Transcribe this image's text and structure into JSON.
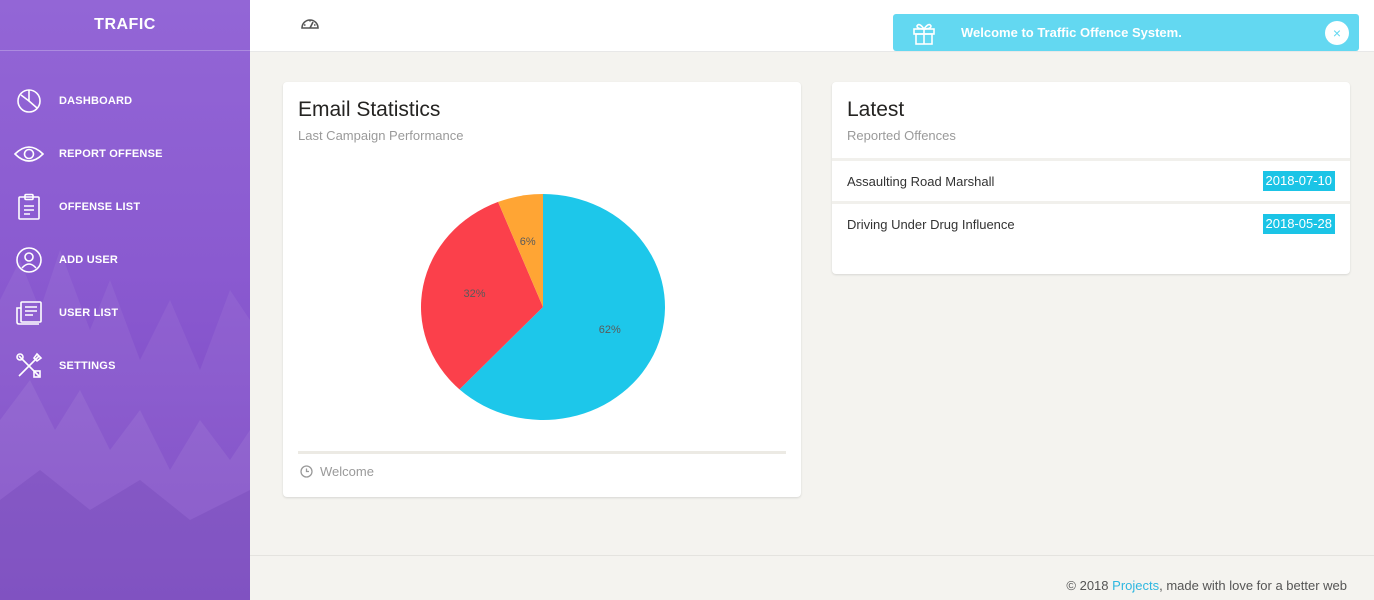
{
  "sidebar": {
    "brand": "TRAFIC",
    "items": [
      {
        "label": "DASHBOARD",
        "icon": "pie-chart-icon"
      },
      {
        "label": "REPORT OFFENSE",
        "icon": "eye-icon"
      },
      {
        "label": "OFFENSE LIST",
        "icon": "clipboard-icon"
      },
      {
        "label": "ADD USER",
        "icon": "user-icon"
      },
      {
        "label": "USER LIST",
        "icon": "news-icon"
      },
      {
        "label": "SETTINGS",
        "icon": "tools-icon"
      }
    ]
  },
  "topbar": {
    "icon": "dashboard-gauge-icon",
    "notification": {
      "message": "Welcome to Traffic Offence System.",
      "icon": "gift-icon",
      "close_icon": "close-icon",
      "color": "#63d8f1"
    }
  },
  "email_card": {
    "title": "Email Statistics",
    "subtitle": "Last Campaign Performance",
    "footer_text": "Welcome",
    "footer_icon": "clock-icon",
    "chart_data": {
      "type": "pie",
      "slices": [
        {
          "label": "62%",
          "value": 62,
          "color": "#1dc7ea"
        },
        {
          "label": "32%",
          "value": 32,
          "color": "#fb404b"
        },
        {
          "label": "6%",
          "value": 6,
          "color": "#ffa534"
        }
      ]
    }
  },
  "latest_card": {
    "title": "Latest",
    "subtitle": "Reported Offences",
    "rows": [
      {
        "offence": "Assaulting Road Marshall",
        "date": "2018-07-10"
      },
      {
        "offence": "Driving Under Drug Influence",
        "date": "2018-05-28"
      }
    ],
    "badge_color": "#1bc4e6"
  },
  "footer": {
    "prefix": "© 2018",
    "link": "Projects",
    "suffix": ", made with love for a better web"
  },
  "colors": {
    "sidebar_top": "#9366d6",
    "sidebar_bottom": "#7a45c2"
  }
}
